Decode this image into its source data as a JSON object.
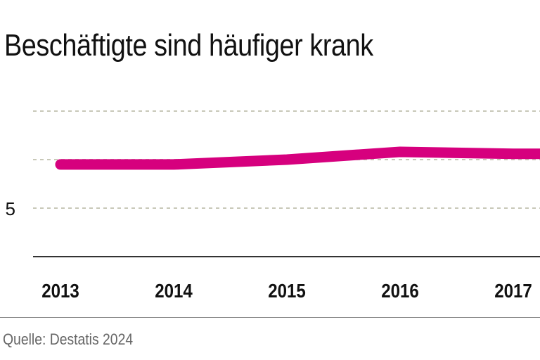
{
  "chart_data": {
    "type": "line",
    "title": "Beschäftigte sind häufiger krank",
    "x": [
      "2013",
      "2014",
      "2015",
      "2016",
      "2017"
    ],
    "series": [
      {
        "values": [
          9.5,
          9.5,
          10.0,
          10.8,
          10.6
        ],
        "color": "#d6007e"
      }
    ],
    "yticks": [
      0,
      5,
      10,
      15
    ],
    "ytick_labels_visible": [
      "5"
    ],
    "ylim": [
      0,
      15
    ],
    "grid": true,
    "grid_style": "dotted"
  },
  "source": "Quelle: Destatis 2024"
}
